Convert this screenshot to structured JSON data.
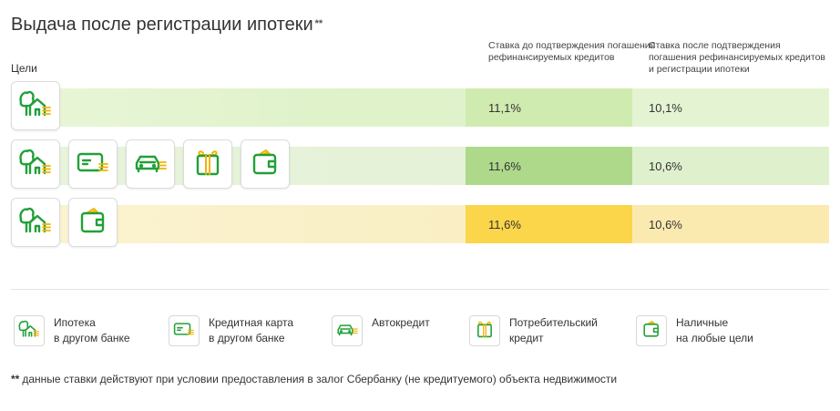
{
  "title": "Выдача после регистрации ипотеки",
  "title_mark": "**",
  "goals_label": "Цели",
  "columns": {
    "before": "Ставка до подтверждения погашения рефинансируемых кредитов",
    "after": "Ставка после подтверждения погашения рефинансируемых кредитов и регистрации ипотеки"
  },
  "rows": [
    {
      "icons": [
        "mortgage-icon"
      ],
      "rate_before": "11,1%",
      "rate_after": "10,1%",
      "accent": "#d0ebaf"
    },
    {
      "icons": [
        "mortgage-icon",
        "credit-card-icon",
        "car-icon",
        "gift-icon",
        "wallet-icon"
      ],
      "rate_before": "11,6%",
      "rate_after": "10,6%",
      "accent": "#aed98a"
    },
    {
      "icons": [
        "mortgage-icon",
        "wallet-icon"
      ],
      "rate_before": "11,6%",
      "rate_after": "10,6%",
      "accent": "#fbd54a"
    }
  ],
  "legend": [
    {
      "icon": "mortgage-icon",
      "line1": "Ипотека",
      "line2": "в другом банке"
    },
    {
      "icon": "credit-card-icon",
      "line1": "Кредитная карта",
      "line2": "в другом банке"
    },
    {
      "icon": "car-icon",
      "line1": "Автокредит",
      "line2": ""
    },
    {
      "icon": "gift-icon",
      "line1": "Потребительский",
      "line2": "кредит"
    },
    {
      "icon": "wallet-icon",
      "line1": "Наличные",
      "line2": "на любые цели"
    }
  ],
  "footnote_mark": "**",
  "footnote": "данные ставки действуют при условии предоставления в залог Сбербанку (не кредитуемого) объекта недвижимости",
  "colors": {
    "green": "#21a038",
    "gold": "#f2b400"
  }
}
